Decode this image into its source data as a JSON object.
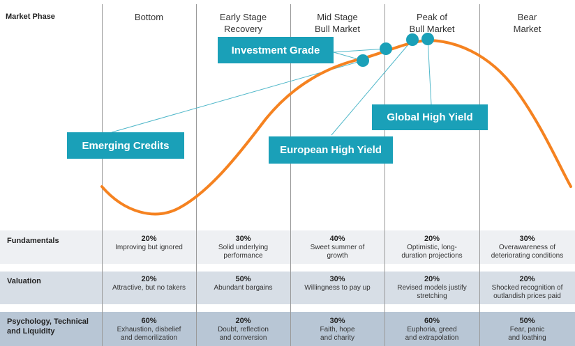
{
  "market_phase_label": "Market Phase",
  "phases": [
    {
      "id": "bottom",
      "label": "Bottom"
    },
    {
      "id": "early",
      "label": "Early Stage\nRecovery"
    },
    {
      "id": "mid",
      "label": "Mid Stage\nBull Market"
    },
    {
      "id": "peak",
      "label": "Peak of\nBull Market"
    },
    {
      "id": "bear",
      "label": "Bear\nMarket"
    }
  ],
  "tags": {
    "investment_grade": "Investment Grade",
    "emerging_credits": "Emerging Credits",
    "european_high_yield": "European High Yield",
    "global_high_yield": "Global High Yield"
  },
  "colors": {
    "curve": "#f58220",
    "tag": "#1aa0b8",
    "fundamentals_band": "#eef0f3",
    "valuation_band": "#d7dee6",
    "psychology_band": "#b8c6d5"
  },
  "rows": {
    "fundamentals": {
      "label": "Fundamentals",
      "cells": [
        {
          "pct": "20%",
          "text": "Improving but ignored"
        },
        {
          "pct": "30%",
          "text": "Solid underlying\nperformance"
        },
        {
          "pct": "40%",
          "text": "Sweet summer of\ngrowth"
        },
        {
          "pct": "20%",
          "text": "Optimistic, long-\nduration projections"
        },
        {
          "pct": "30%",
          "text": "Overawareness of\ndeteriorating conditions"
        }
      ]
    },
    "valuation": {
      "label": "Valuation",
      "cells": [
        {
          "pct": "20%",
          "text": "Attractive, but no takers"
        },
        {
          "pct": "50%",
          "text": "Abundant bargains"
        },
        {
          "pct": "30%",
          "text": "Willingness to pay up"
        },
        {
          "pct": "20%",
          "text": "Revised models justify\nstretching"
        },
        {
          "pct": "20%",
          "text": "Shocked recognition of\noutlandish prices paid"
        }
      ]
    },
    "psychology": {
      "label": "Psychology, Technical\nand Liquidity",
      "cells": [
        {
          "pct": "60%",
          "text": "Exhaustion, disbelief\nand demorilization"
        },
        {
          "pct": "20%",
          "text": "Doubt, reflection\nand conversion"
        },
        {
          "pct": "30%",
          "text": "Faith, hope\nand charity"
        },
        {
          "pct": "60%",
          "text": "Euphoria, greed\nand extrapolation"
        },
        {
          "pct": "50%",
          "text": "Fear, panic\nand loathing"
        }
      ]
    }
  }
}
